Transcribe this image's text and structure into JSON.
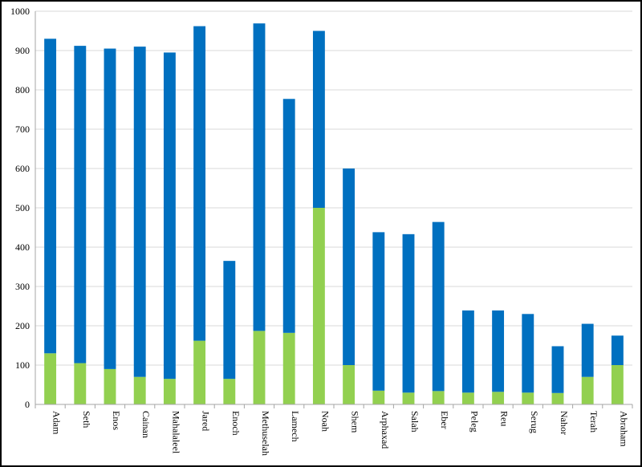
{
  "chart_data": {
    "type": "bar",
    "stacked": true,
    "categories": [
      "Adam",
      "Seth",
      "Enos",
      "Cainan",
      "Mahalaleel",
      "Jared",
      "Enoch",
      "Methuselah",
      "Lamech",
      "Noah",
      "Shem",
      "Arphaxad",
      "Salah",
      "Eber",
      "Peleg",
      "Reu",
      "Serug",
      "Nahor",
      "Terah",
      "Abraham"
    ],
    "series": [
      {
        "color": "#92d050",
        "values": [
          130,
          105,
          90,
          70,
          65,
          162,
          65,
          187,
          182,
          500,
          100,
          35,
          30,
          34,
          30,
          32,
          30,
          29,
          70,
          100
        ]
      },
      {
        "color": "#0070c0",
        "values": [
          800,
          807,
          815,
          840,
          830,
          800,
          300,
          782,
          595,
          450,
          500,
          403,
          403,
          430,
          209,
          207,
          200,
          119,
          135,
          75
        ]
      }
    ],
    "ylim": [
      0,
      1000
    ],
    "yticks": [
      "0",
      "100",
      "200",
      "300",
      "400",
      "500",
      "600",
      "700",
      "800",
      "900",
      "1000"
    ],
    "grid": true,
    "legend": "none"
  }
}
